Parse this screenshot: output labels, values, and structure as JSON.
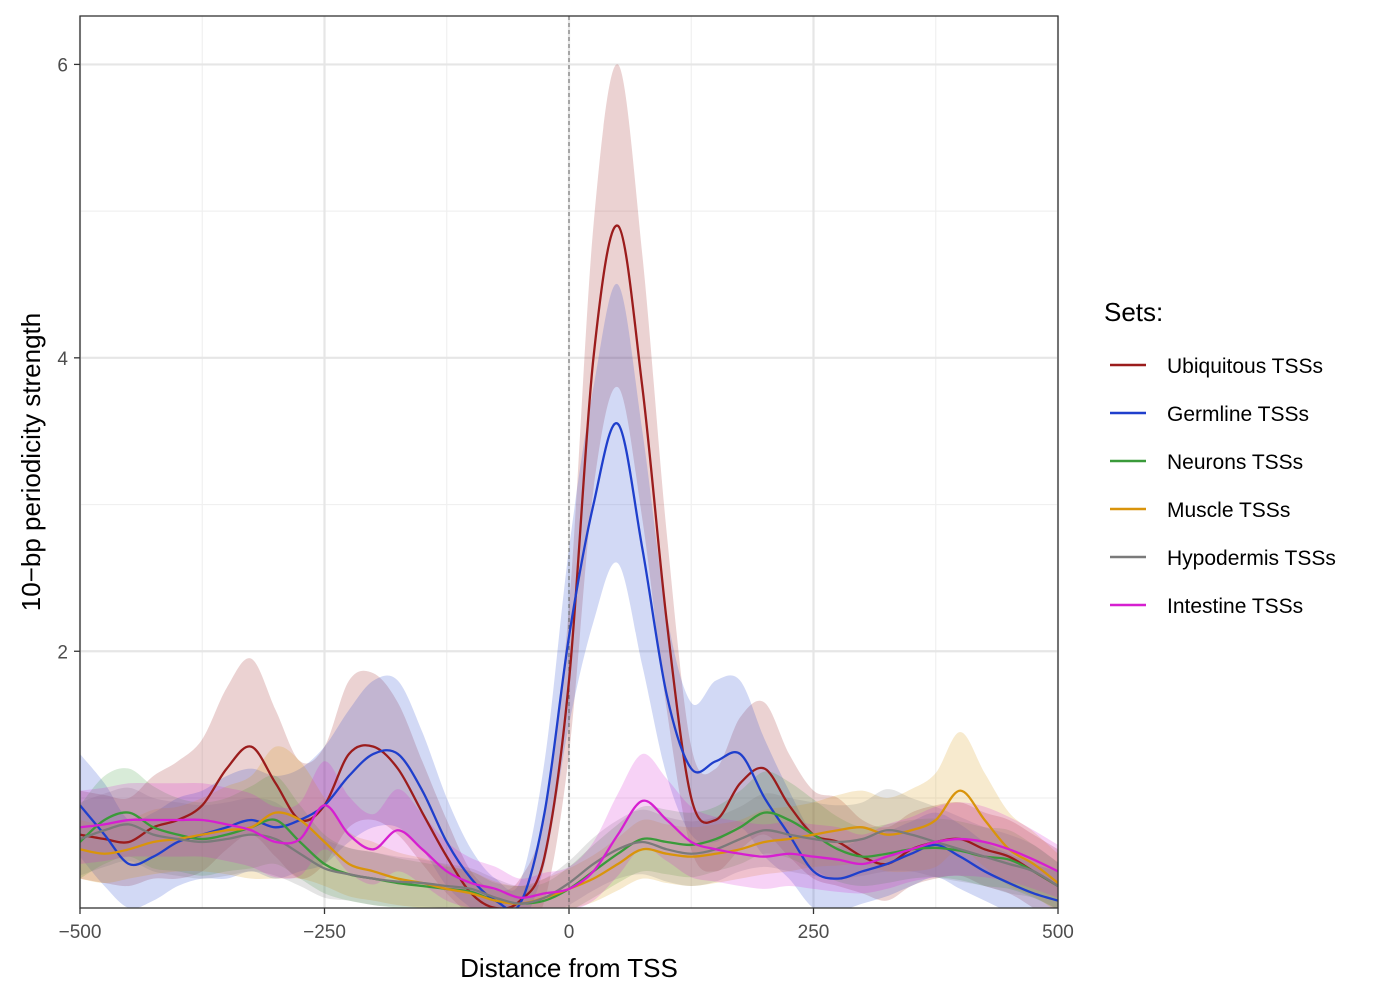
{
  "chart_data": {
    "type": "line",
    "title": "",
    "xlabel": "Distance from TSS",
    "ylabel": "10−bp periodicity strength",
    "xlim": [
      -500,
      500
    ],
    "ylim": [
      0.25,
      6.33
    ],
    "x_ticks": [
      -500,
      -250,
      0,
      250,
      500
    ],
    "x_tick_labels": [
      "−500",
      "−250",
      "0",
      "250",
      "500"
    ],
    "y_ticks": [
      2,
      4,
      6
    ],
    "y_tick_labels": [
      "2",
      "4",
      "6"
    ],
    "grid": true,
    "reference_line_x": 0,
    "legend": {
      "title": "Sets:",
      "position": "right"
    },
    "x": [
      -500,
      -475,
      -450,
      -425,
      -400,
      -375,
      -350,
      -325,
      -300,
      -275,
      -250,
      -225,
      -200,
      -175,
      -150,
      -125,
      -100,
      -75,
      -50,
      -25,
      0,
      25,
      50,
      75,
      100,
      125,
      150,
      175,
      200,
      225,
      250,
      275,
      300,
      325,
      350,
      375,
      400,
      425,
      450,
      475,
      500
    ],
    "series": [
      {
        "name": "Ubiquitous TSSs",
        "color": "#9b1c1c",
        "values": [
          0.75,
          0.72,
          0.7,
          0.8,
          0.85,
          0.95,
          1.2,
          1.35,
          1.1,
          0.85,
          0.95,
          1.3,
          1.35,
          1.2,
          0.9,
          0.6,
          0.35,
          0.25,
          0.3,
          0.6,
          1.8,
          4.0,
          4.9,
          3.8,
          2.2,
          1.0,
          0.85,
          1.1,
          1.2,
          0.95,
          0.75,
          0.7,
          0.6,
          0.55,
          0.65,
          0.7,
          0.72,
          0.65,
          0.6,
          0.5,
          0.4
        ],
        "band": [
          0.3,
          0.3,
          0.3,
          0.35,
          0.4,
          0.45,
          0.55,
          0.6,
          0.5,
          0.4,
          0.4,
          0.5,
          0.5,
          0.45,
          0.35,
          0.25,
          0.15,
          0.12,
          0.15,
          0.3,
          0.5,
          0.9,
          1.1,
          0.9,
          0.6,
          0.35,
          0.35,
          0.45,
          0.45,
          0.35,
          0.3,
          0.3,
          0.25,
          0.25,
          0.25,
          0.25,
          0.25,
          0.25,
          0.25,
          0.25,
          0.25
        ]
      },
      {
        "name": "Germline TSSs",
        "color": "#1f3fcc",
        "values": [
          0.95,
          0.75,
          0.55,
          0.6,
          0.7,
          0.75,
          0.8,
          0.85,
          0.8,
          0.85,
          0.95,
          1.15,
          1.3,
          1.3,
          1.05,
          0.7,
          0.45,
          0.3,
          0.28,
          0.9,
          2.1,
          3.0,
          3.55,
          2.7,
          1.7,
          1.2,
          1.25,
          1.3,
          1.0,
          0.75,
          0.5,
          0.45,
          0.5,
          0.55,
          0.62,
          0.68,
          0.6,
          0.5,
          0.42,
          0.35,
          0.3
        ],
        "band": [
          0.35,
          0.35,
          0.3,
          0.3,
          0.3,
          0.3,
          0.35,
          0.35,
          0.35,
          0.35,
          0.4,
          0.45,
          0.5,
          0.5,
          0.4,
          0.3,
          0.2,
          0.15,
          0.15,
          0.35,
          0.6,
          0.8,
          0.95,
          0.8,
          0.55,
          0.45,
          0.55,
          0.5,
          0.4,
          0.3,
          0.25,
          0.22,
          0.22,
          0.22,
          0.22,
          0.22,
          0.22,
          0.2,
          0.2,
          0.2,
          0.2
        ]
      },
      {
        "name": "Neurons TSSs",
        "color": "#3a9a3a",
        "values": [
          0.7,
          0.85,
          0.9,
          0.8,
          0.75,
          0.72,
          0.75,
          0.8,
          0.85,
          0.7,
          0.55,
          0.48,
          0.45,
          0.42,
          0.4,
          0.38,
          0.36,
          0.3,
          0.28,
          0.3,
          0.38,
          0.5,
          0.62,
          0.72,
          0.7,
          0.68,
          0.72,
          0.8,
          0.9,
          0.85,
          0.75,
          0.65,
          0.6,
          0.62,
          0.65,
          0.66,
          0.64,
          0.6,
          0.58,
          0.5,
          0.4
        ],
        "band": [
          0.25,
          0.3,
          0.3,
          0.28,
          0.25,
          0.25,
          0.25,
          0.28,
          0.3,
          0.25,
          0.2,
          0.18,
          0.18,
          0.17,
          0.16,
          0.15,
          0.14,
          0.12,
          0.12,
          0.12,
          0.15,
          0.18,
          0.2,
          0.22,
          0.22,
          0.22,
          0.22,
          0.25,
          0.28,
          0.26,
          0.24,
          0.22,
          0.2,
          0.2,
          0.2,
          0.2,
          0.2,
          0.2,
          0.2,
          0.18,
          0.16
        ]
      },
      {
        "name": "Muscle TSSs",
        "color": "#d9940b",
        "values": [
          0.65,
          0.62,
          0.65,
          0.7,
          0.72,
          0.75,
          0.78,
          0.8,
          0.9,
          0.85,
          0.7,
          0.55,
          0.5,
          0.45,
          0.42,
          0.38,
          0.35,
          0.3,
          0.28,
          0.32,
          0.38,
          0.45,
          0.55,
          0.65,
          0.62,
          0.6,
          0.62,
          0.65,
          0.7,
          0.72,
          0.75,
          0.78,
          0.8,
          0.75,
          0.78,
          0.85,
          1.05,
          0.85,
          0.65,
          0.55,
          0.42
        ],
        "band": [
          0.2,
          0.2,
          0.2,
          0.22,
          0.22,
          0.25,
          0.3,
          0.35,
          0.45,
          0.4,
          0.3,
          0.22,
          0.2,
          0.18,
          0.17,
          0.16,
          0.15,
          0.13,
          0.12,
          0.13,
          0.14,
          0.16,
          0.18,
          0.2,
          0.2,
          0.2,
          0.2,
          0.2,
          0.22,
          0.22,
          0.22,
          0.24,
          0.25,
          0.25,
          0.28,
          0.32,
          0.4,
          0.32,
          0.25,
          0.22,
          0.2
        ]
      },
      {
        "name": "Hypodermis TSSs",
        "color": "#7a7a7a",
        "values": [
          0.72,
          0.78,
          0.82,
          0.75,
          0.72,
          0.7,
          0.72,
          0.75,
          0.72,
          0.62,
          0.52,
          0.48,
          0.45,
          0.43,
          0.42,
          0.4,
          0.38,
          0.32,
          0.28,
          0.32,
          0.42,
          0.55,
          0.65,
          0.7,
          0.65,
          0.62,
          0.65,
          0.72,
          0.78,
          0.75,
          0.72,
          0.7,
          0.72,
          0.78,
          0.75,
          0.7,
          0.65,
          0.6,
          0.55,
          0.5,
          0.4
        ],
        "band": [
          0.25,
          0.25,
          0.25,
          0.25,
          0.25,
          0.25,
          0.25,
          0.25,
          0.25,
          0.22,
          0.2,
          0.18,
          0.18,
          0.17,
          0.16,
          0.15,
          0.14,
          0.13,
          0.12,
          0.13,
          0.15,
          0.18,
          0.2,
          0.22,
          0.22,
          0.22,
          0.22,
          0.22,
          0.25,
          0.25,
          0.25,
          0.25,
          0.25,
          0.28,
          0.25,
          0.24,
          0.22,
          0.2,
          0.2,
          0.18,
          0.16
        ]
      },
      {
        "name": "Intestine TSSs",
        "color": "#d61fd0",
        "values": [
          0.8,
          0.82,
          0.85,
          0.85,
          0.85,
          0.85,
          0.82,
          0.78,
          0.7,
          0.72,
          0.95,
          0.75,
          0.65,
          0.78,
          0.65,
          0.5,
          0.42,
          0.38,
          0.32,
          0.35,
          0.38,
          0.5,
          0.75,
          0.98,
          0.85,
          0.7,
          0.65,
          0.62,
          0.6,
          0.62,
          0.6,
          0.58,
          0.55,
          0.6,
          0.65,
          0.7,
          0.72,
          0.7,
          0.65,
          0.58,
          0.5
        ],
        "band": [
          0.25,
          0.25,
          0.25,
          0.25,
          0.25,
          0.25,
          0.25,
          0.25,
          0.24,
          0.25,
          0.3,
          0.26,
          0.24,
          0.28,
          0.24,
          0.2,
          0.17,
          0.15,
          0.13,
          0.14,
          0.15,
          0.2,
          0.28,
          0.32,
          0.28,
          0.24,
          0.22,
          0.22,
          0.22,
          0.22,
          0.22,
          0.22,
          0.2,
          0.22,
          0.22,
          0.24,
          0.25,
          0.24,
          0.22,
          0.2,
          0.18
        ]
      }
    ]
  }
}
